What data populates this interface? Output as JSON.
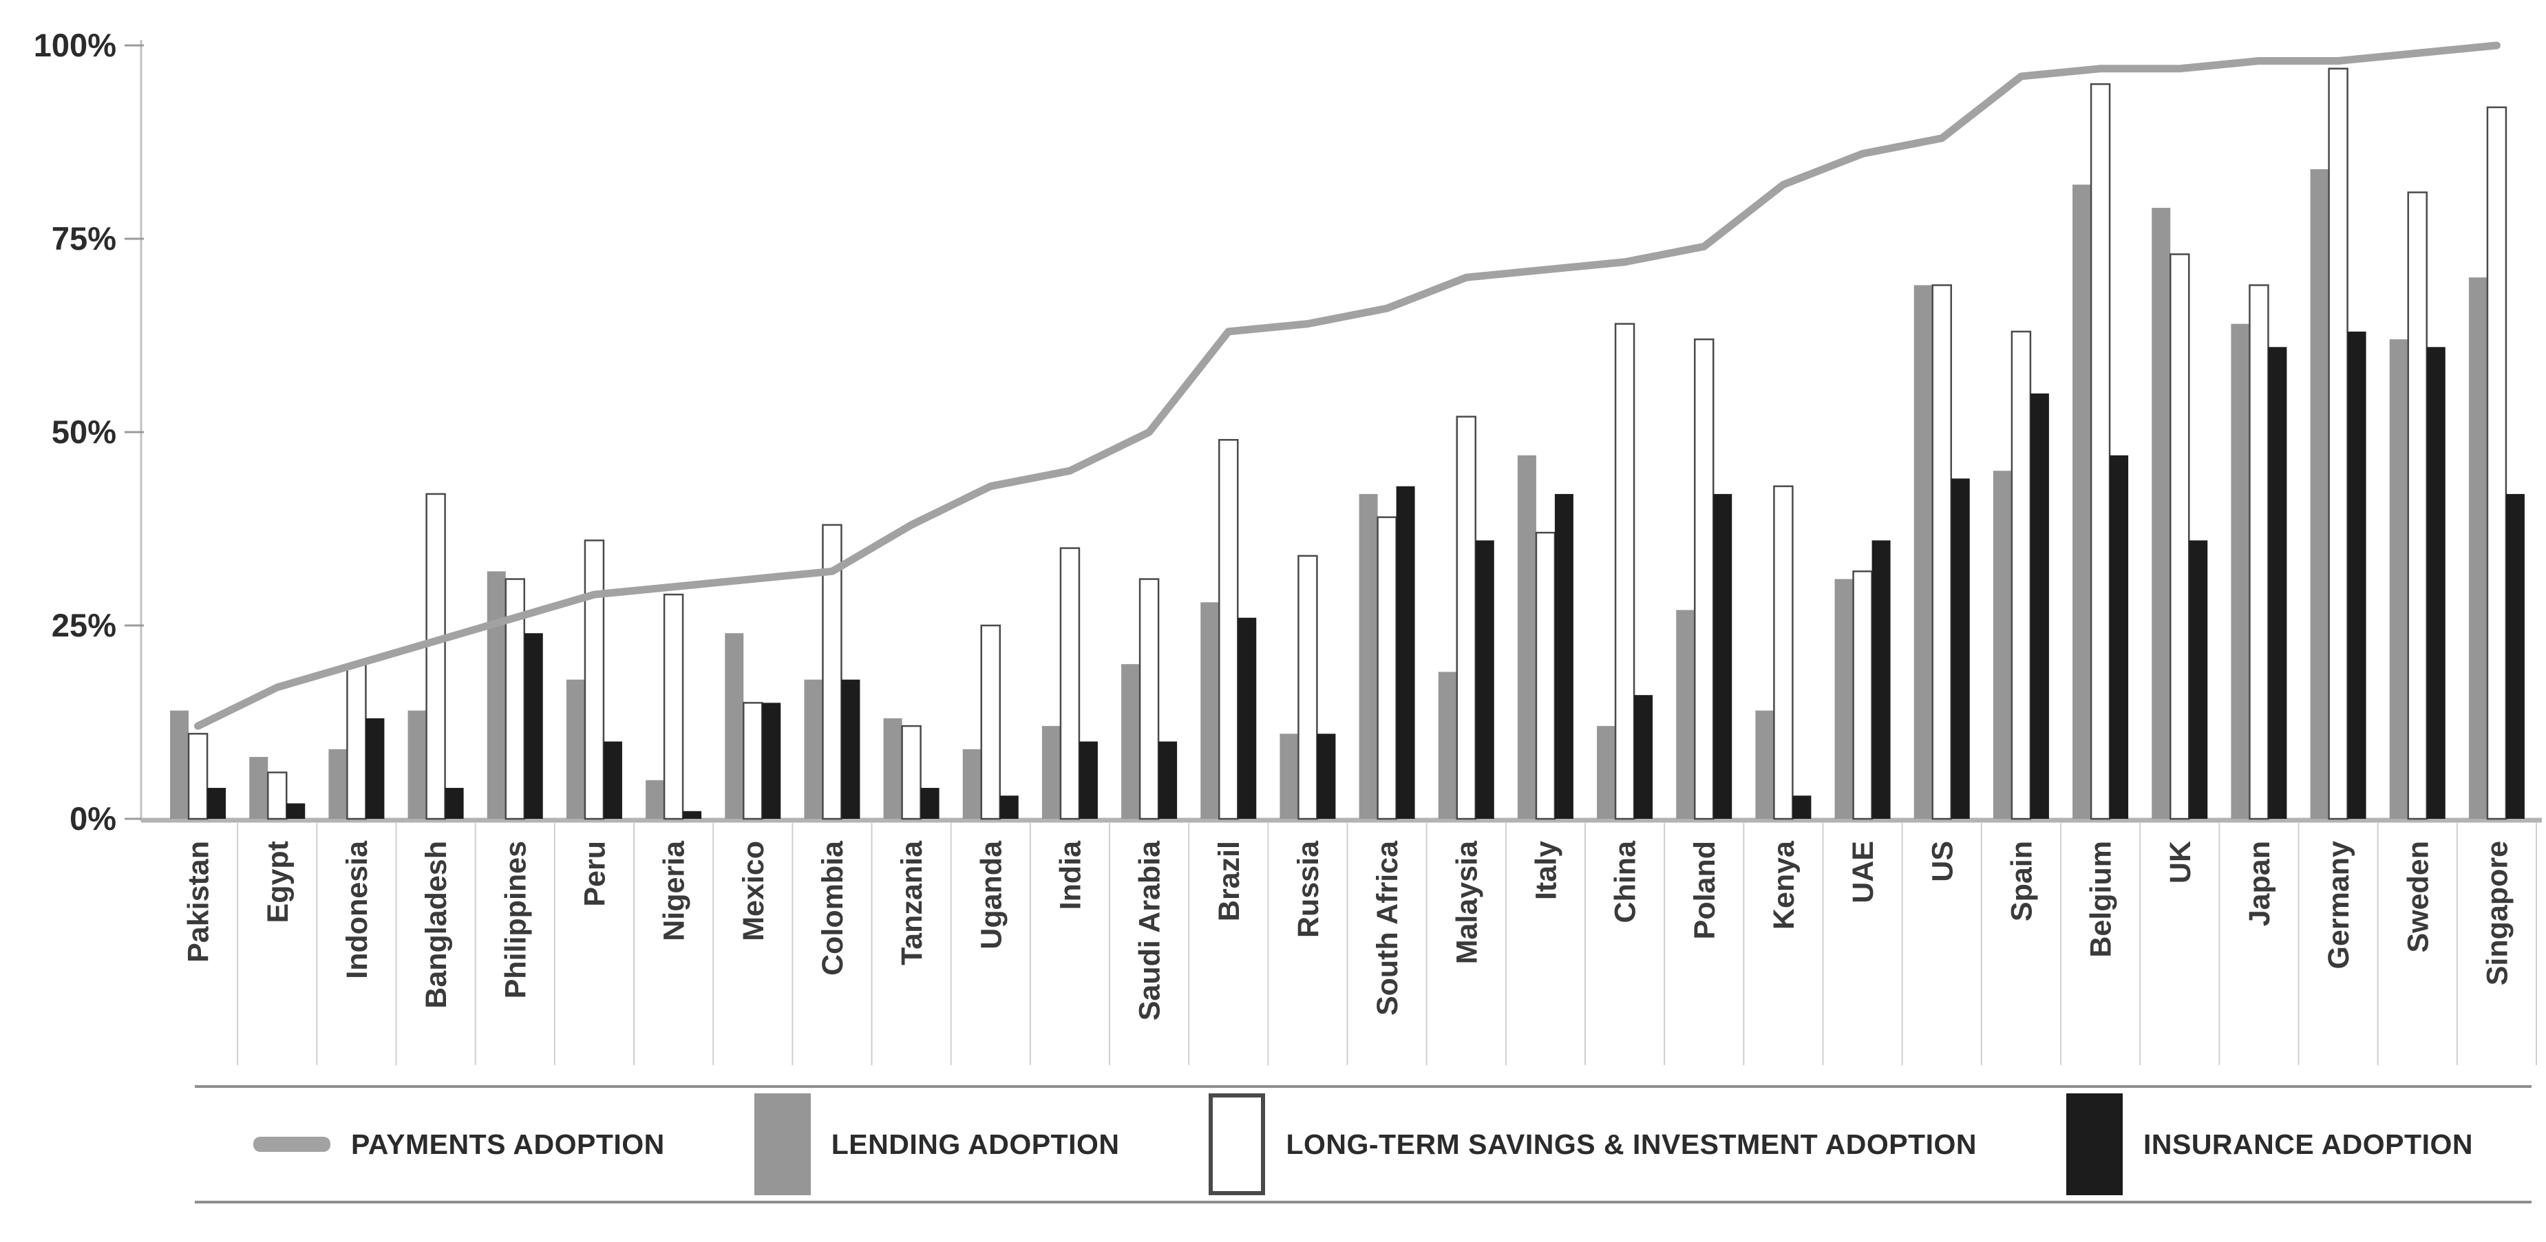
{
  "chart_data": {
    "type": "bar",
    "title": "",
    "categories": [
      "Pakistan",
      "Egypt",
      "Indonesia",
      "Bangladesh",
      "Philippines",
      "Peru",
      "Nigeria",
      "Mexico",
      "Colombia",
      "Tanzania",
      "Uganda",
      "India",
      "Saudi Arabia",
      "Brazil",
      "Russia",
      "South Africa",
      "Malaysia",
      "Italy",
      "China",
      "Poland",
      "Kenya",
      "UAE",
      "US",
      "Spain",
      "Belgium",
      "UK",
      "Japan",
      "Germany",
      "Sweden",
      "Singapore"
    ],
    "series": [
      {
        "name": "PAYMENTS ADOPTION",
        "type": "line",
        "color": "#a2a2a2",
        "values": [
          12,
          17,
          20,
          23,
          26,
          29,
          30,
          31,
          32,
          38,
          43,
          45,
          50,
          63,
          64,
          66,
          70,
          71,
          72,
          74,
          82,
          86,
          88,
          96,
          97,
          97,
          98,
          98,
          99,
          100
        ]
      },
      {
        "name": "LENDING ADOPTION",
        "type": "bar",
        "color": "#969696",
        "values": [
          14,
          8,
          9,
          14,
          32,
          18,
          5,
          24,
          18,
          13,
          9,
          12,
          20,
          28,
          11,
          42,
          19,
          47,
          12,
          27,
          14,
          31,
          69,
          45,
          82,
          79,
          64,
          84,
          62,
          70
        ]
      },
      {
        "name": "LONG-TERM SAVINGS & INVESTMENT ADOPTION",
        "type": "bar",
        "color": "#ffffff",
        "border": "#4a4a4a",
        "values": [
          11,
          6,
          20,
          42,
          31,
          36,
          29,
          15,
          38,
          12,
          25,
          35,
          31,
          49,
          34,
          39,
          52,
          37,
          64,
          62,
          43,
          32,
          69,
          63,
          95,
          73,
          69,
          97,
          81,
          92
        ]
      },
      {
        "name": "INSURANCE ADOPTION",
        "type": "bar",
        "color": "#1c1c1c",
        "values": [
          4,
          2,
          13,
          4,
          24,
          10,
          1,
          15,
          18,
          4,
          3,
          10,
          10,
          26,
          11,
          43,
          36,
          42,
          16,
          42,
          3,
          36,
          44,
          55,
          47,
          36,
          61,
          63,
          61,
          42
        ]
      }
    ],
    "y_ticks": [
      "0%",
      "25%",
      "50%",
      "75%",
      "100%"
    ],
    "ylim": [
      0,
      100
    ],
    "grid": false,
    "legend_position": "bottom"
  },
  "colors": {
    "axis_line": "#c2c2c2",
    "baseline": "#b3b3b3",
    "tick": "#9b9b9b",
    "tick_text": "#2b2b2b",
    "category_text": "#3a3a3a",
    "separator": "#cfcfcf",
    "legend_rule": "#8f8f8f",
    "legend_text": "#2b2b2b",
    "background": "#ffffff"
  }
}
